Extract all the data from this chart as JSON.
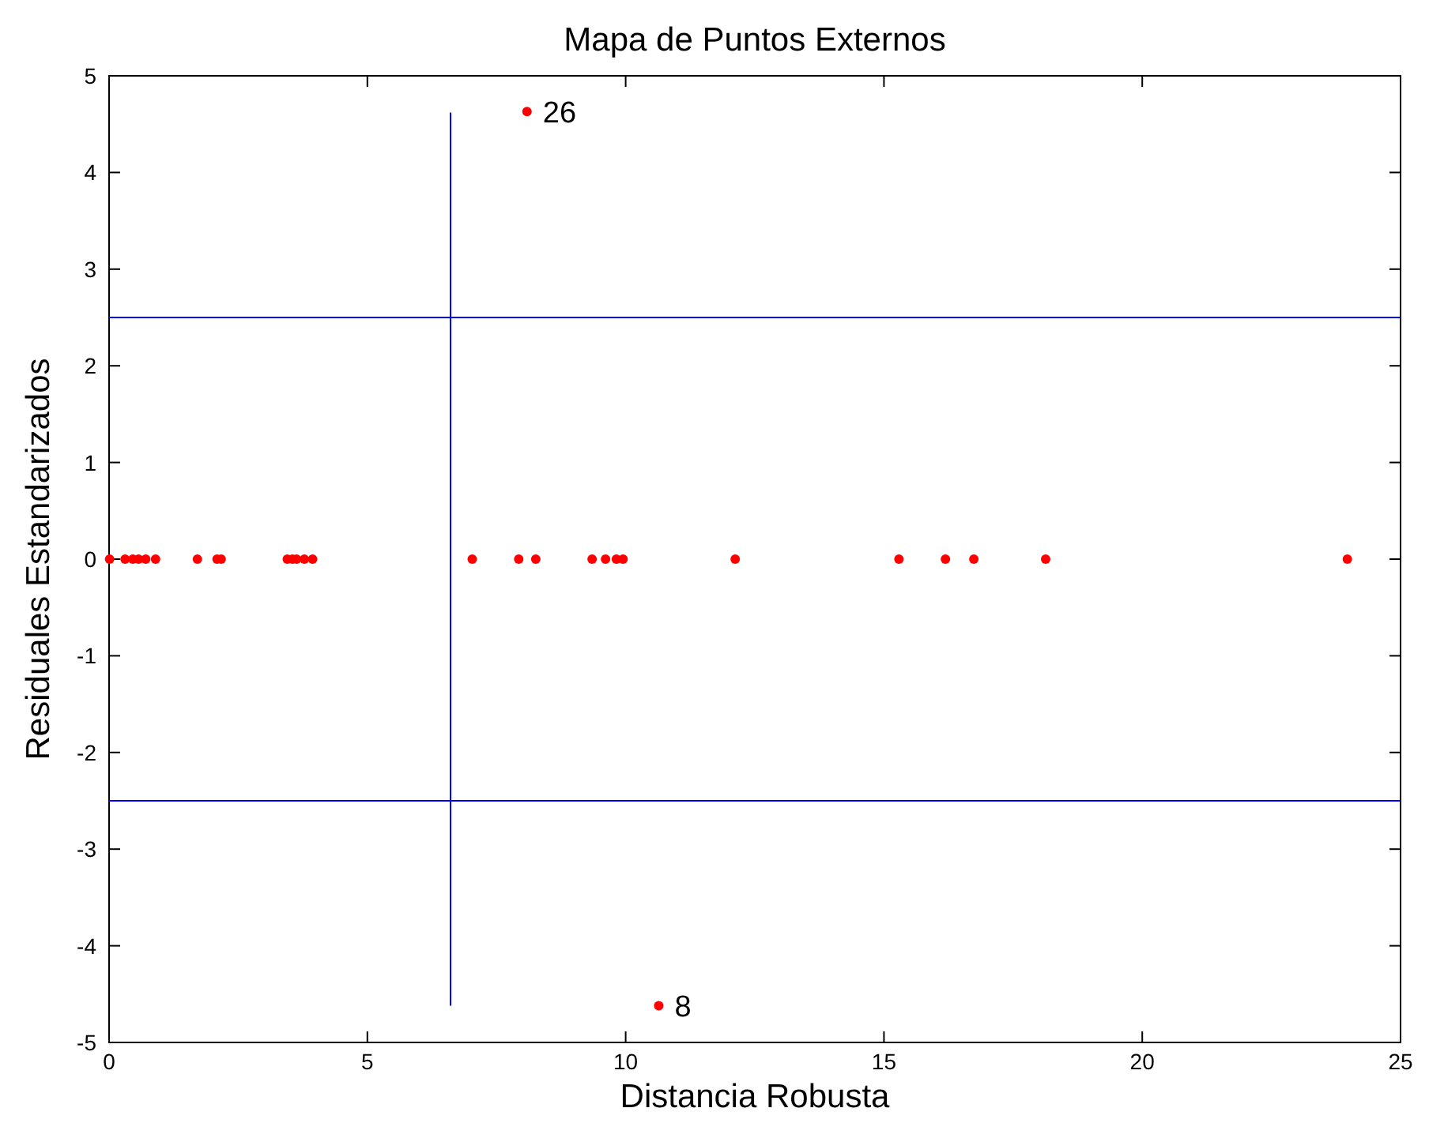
{
  "chart_data": {
    "type": "scatter",
    "title": "Mapa de Puntos Externos",
    "xlabel": "Distancia Robusta",
    "ylabel": "Residuales Estandarizados",
    "xlim": [
      0,
      25
    ],
    "ylim": [
      -5,
      5
    ],
    "xticks": [
      0,
      5,
      10,
      15,
      20,
      25
    ],
    "yticks": [
      -5,
      -4,
      -3,
      -2,
      -1,
      0,
      1,
      2,
      3,
      4,
      5
    ],
    "grid": false,
    "series": [
      {
        "color": "#ff0000",
        "marker": "circle",
        "x": [
          0.01,
          0.31,
          0.46,
          0.57,
          0.71,
          0.9,
          1.71,
          2.09,
          2.17,
          3.45,
          3.55,
          3.63,
          3.78,
          3.94,
          7.03,
          7.93,
          8.26,
          9.35,
          9.61,
          9.82,
          9.95,
          12.12,
          15.29,
          16.19,
          16.74,
          18.13,
          23.97,
          8.09,
          10.64
        ],
        "values": [
          0,
          0,
          0,
          0,
          0,
          0,
          0,
          0,
          0,
          0,
          0,
          0,
          0,
          0,
          0,
          0,
          0,
          0,
          0,
          0,
          0,
          0,
          0,
          0,
          0,
          0,
          0,
          4.63,
          -4.62
        ]
      },
      {
        "type": "line",
        "color": "#0000ff",
        "marker": "none",
        "x": [
          6.61,
          6.61
        ],
        "values": [
          -4.62,
          4.62
        ]
      }
    ],
    "ref_lines": [
      {
        "axis": "y",
        "value": 2.5,
        "color": "#0000ff"
      },
      {
        "axis": "y",
        "value": -2.5,
        "color": "#0000ff"
      }
    ],
    "annotations": [
      {
        "text": "26",
        "x": 8.09,
        "y": 4.63
      },
      {
        "text": "8",
        "x": 10.64,
        "y": -4.62
      }
    ]
  }
}
